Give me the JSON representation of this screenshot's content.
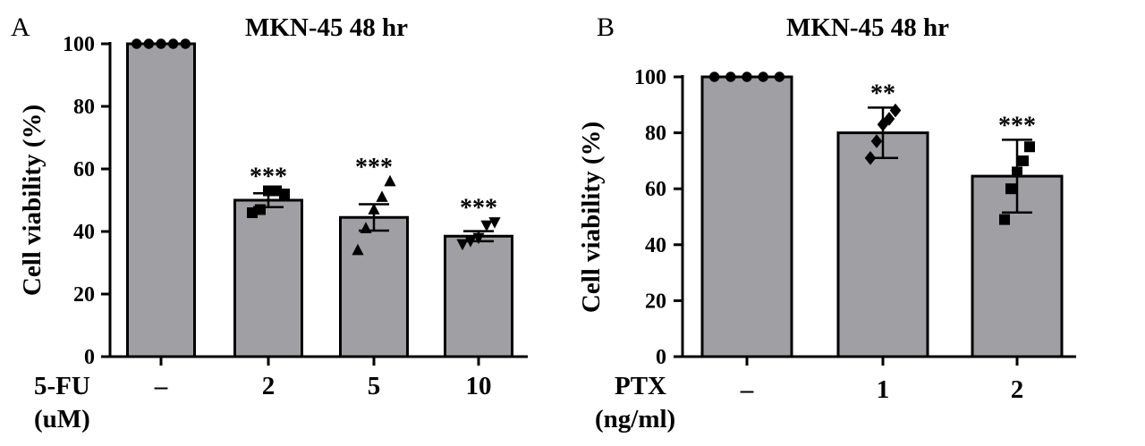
{
  "chart_data": [
    {
      "type": "bar",
      "panel_label": "A",
      "title": "MKN-45 48 hr",
      "ylabel": "Cell viability (%)",
      "xlabel_line1": "5-FU",
      "xlabel_line2": "(uM)",
      "categories": [
        "–",
        "2",
        "5",
        "10"
      ],
      "values": [
        100,
        50,
        44.5,
        38.5
      ],
      "error": [
        0.5,
        2.2,
        4.2,
        1.6
      ],
      "significance": [
        "",
        "***",
        "***",
        "***"
      ],
      "ylim": [
        0,
        100
      ],
      "yticks": [
        0,
        20,
        40,
        60,
        80,
        100
      ],
      "bar_color": "#a0a0a4",
      "markers": [
        "circle",
        "square",
        "triangle-up",
        "triangle-down"
      ],
      "points": [
        [
          100,
          100,
          100,
          100,
          100
        ],
        [
          46,
          47,
          53,
          53,
          52
        ],
        [
          34,
          41,
          47,
          51,
          56
        ],
        [
          36,
          37,
          38,
          42,
          43
        ]
      ]
    },
    {
      "type": "bar",
      "panel_label": "B",
      "title": "MKN-45 48 hr",
      "ylabel": "Cell viability (%)",
      "xlabel_line1": "PTX",
      "xlabel_line2": "(ng/ml)",
      "categories": [
        "–",
        "1",
        "2"
      ],
      "values": [
        100,
        80,
        64.5
      ],
      "error": [
        0.5,
        9,
        13
      ],
      "significance": [
        "",
        "**",
        "***"
      ],
      "ylim": [
        0,
        100
      ],
      "yticks": [
        0,
        20,
        40,
        60,
        80,
        100
      ],
      "bar_color": "#a0a0a4",
      "markers": [
        "circle",
        "diamond",
        "square"
      ],
      "points": [
        [
          100,
          100,
          100,
          100,
          100
        ],
        [
          71,
          77,
          83,
          85,
          88
        ],
        [
          49,
          60,
          66,
          70,
          75
        ]
      ]
    }
  ]
}
